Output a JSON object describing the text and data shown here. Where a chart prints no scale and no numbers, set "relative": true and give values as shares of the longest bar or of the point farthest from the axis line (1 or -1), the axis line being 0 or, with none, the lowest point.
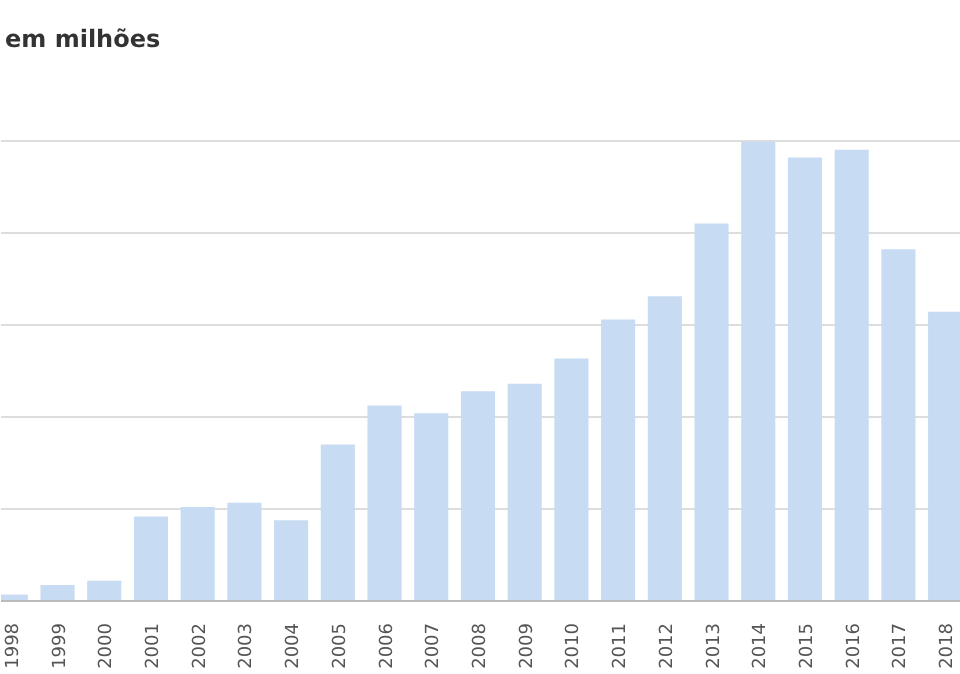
{
  "chart_data": {
    "type": "bar",
    "title": "em milhões",
    "categories": [
      "1998",
      "1999",
      "2000",
      "2001",
      "2002",
      "2003",
      "2004",
      "2005",
      "2006",
      "2007",
      "2008",
      "2009",
      "2010",
      "2011",
      "2012",
      "2013",
      "2014",
      "2015",
      "2016",
      "2017",
      "2018"
    ],
    "values": [
      0.014,
      0.035,
      0.044,
      0.184,
      0.205,
      0.214,
      0.176,
      0.341,
      0.426,
      0.409,
      0.457,
      0.473,
      0.528,
      0.613,
      0.664,
      0.822,
      1,
      0.966,
      0.983,
      0.766,
      0.63
    ],
    "color": "#c7dbf2",
    "relative": true,
    "grid": "y"
  }
}
